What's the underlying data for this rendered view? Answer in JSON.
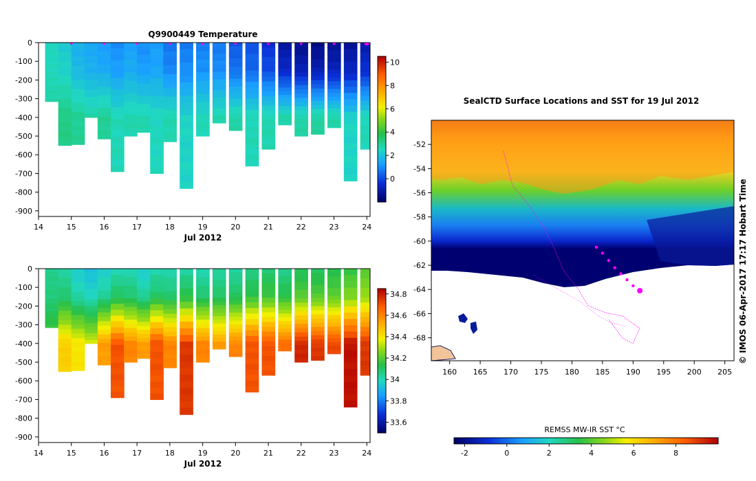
{
  "chart_data": [
    {
      "type": "heatmap",
      "title": "Q9900449  Temperature",
      "xlabel": "Jul 2012",
      "ylabel": "",
      "x_ticks": [
        "14",
        "15",
        "16",
        "17",
        "18",
        "19",
        "20",
        "21",
        "22",
        "23",
        "24"
      ],
      "y_ticks": [
        "0",
        "-100",
        "-200",
        "-300",
        "-400",
        "-500",
        "-600",
        "-700",
        "-800",
        "-900"
      ],
      "xlim": [
        14,
        24.1
      ],
      "ylim": [
        -930,
        0
      ],
      "colorbar": {
        "ticks": [
          "0",
          "2",
          "4",
          "6",
          "8",
          "10"
        ],
        "range": [
          -2,
          10.5
        ]
      },
      "profiles": [
        {
          "x": 14.4,
          "depth": 315,
          "surface": 2.5,
          "deep": 2.9
        },
        {
          "x": 14.8,
          "depth": 550,
          "surface": 2.2,
          "deep": 3.2
        },
        {
          "x": 15.2,
          "depth": 545,
          "surface": 1.6,
          "deep": 3.0
        },
        {
          "x": 15.6,
          "depth": 400,
          "surface": 1.4,
          "deep": 2.8
        },
        {
          "x": 16.0,
          "depth": 515,
          "surface": 1.2,
          "deep": 3.0
        },
        {
          "x": 16.4,
          "depth": 690,
          "surface": 1.0,
          "deep": 2.6
        },
        {
          "x": 16.8,
          "depth": 500,
          "surface": 1.3,
          "deep": 2.7
        },
        {
          "x": 17.2,
          "depth": 480,
          "surface": 1.0,
          "deep": 2.7
        },
        {
          "x": 17.6,
          "depth": 700,
          "surface": 1.2,
          "deep": 2.5
        },
        {
          "x": 18.0,
          "depth": 530,
          "surface": 0.6,
          "deep": 2.7
        },
        {
          "x": 18.5,
          "depth": 780,
          "surface": 0.7,
          "deep": 2.4
        },
        {
          "x": 19.0,
          "depth": 500,
          "surface": 0.8,
          "deep": 2.6
        },
        {
          "x": 19.5,
          "depth": 430,
          "surface": 0.7,
          "deep": 2.7
        },
        {
          "x": 20.0,
          "depth": 470,
          "surface": 0.2,
          "deep": 2.8
        },
        {
          "x": 20.5,
          "depth": 660,
          "surface": 0.1,
          "deep": 2.6
        },
        {
          "x": 21.0,
          "depth": 570,
          "surface": -0.4,
          "deep": 2.7
        },
        {
          "x": 21.5,
          "depth": 440,
          "surface": -1.2,
          "deep": 2.8
        },
        {
          "x": 22.0,
          "depth": 500,
          "surface": -1.5,
          "deep": 2.8
        },
        {
          "x": 22.5,
          "depth": 490,
          "surface": -1.6,
          "deep": 2.9
        },
        {
          "x": 23.0,
          "depth": 455,
          "surface": -1.4,
          "deep": 2.8
        },
        {
          "x": 23.5,
          "depth": 740,
          "surface": -1.3,
          "deep": 2.4
        },
        {
          "x": 24.0,
          "depth": 570,
          "surface": -1.0,
          "deep": 2.6
        }
      ]
    },
    {
      "type": "heatmap",
      "title": "",
      "xlabel": "Jul 2012",
      "ylabel": "",
      "x_ticks": [
        "14",
        "15",
        "16",
        "17",
        "18",
        "19",
        "20",
        "21",
        "22",
        "23",
        "24"
      ],
      "y_ticks": [
        "0",
        "-100",
        "-200",
        "-300",
        "-400",
        "-500",
        "-600",
        "-700",
        "-800",
        "-900"
      ],
      "xlim": [
        14,
        24.1
      ],
      "ylim": [
        -930,
        0
      ],
      "colorbar": {
        "ticks": [
          "33.6",
          "33.8",
          "34",
          "34.2",
          "34.4",
          "34.6",
          "34.8"
        ],
        "range": [
          33.5,
          34.85
        ]
      },
      "profiles": [
        {
          "x": 14.4,
          "depth": 315,
          "surface": 34.05,
          "deep": 34.2
        },
        {
          "x": 14.8,
          "depth": 550,
          "surface": 34.02,
          "deep": 34.45
        },
        {
          "x": 15.2,
          "depth": 545,
          "surface": 33.95,
          "deep": 34.4
        },
        {
          "x": 15.6,
          "depth": 400,
          "surface": 33.92,
          "deep": 34.35
        },
        {
          "x": 16.0,
          "depth": 515,
          "surface": 33.95,
          "deep": 34.55
        },
        {
          "x": 16.4,
          "depth": 690,
          "surface": 34.0,
          "deep": 34.7
        },
        {
          "x": 16.8,
          "depth": 500,
          "surface": 34.0,
          "deep": 34.6
        },
        {
          "x": 17.2,
          "depth": 480,
          "surface": 33.95,
          "deep": 34.55
        },
        {
          "x": 17.6,
          "depth": 700,
          "surface": 34.0,
          "deep": 34.7
        },
        {
          "x": 18.0,
          "depth": 530,
          "surface": 34.0,
          "deep": 34.6
        },
        {
          "x": 18.5,
          "depth": 780,
          "surface": 34.02,
          "deep": 34.75
        },
        {
          "x": 19.0,
          "depth": 500,
          "surface": 34.0,
          "deep": 34.6
        },
        {
          "x": 19.5,
          "depth": 430,
          "surface": 34.02,
          "deep": 34.55
        },
        {
          "x": 20.0,
          "depth": 470,
          "surface": 34.02,
          "deep": 34.6
        },
        {
          "x": 20.5,
          "depth": 660,
          "surface": 34.05,
          "deep": 34.7
        },
        {
          "x": 21.0,
          "depth": 570,
          "surface": 34.08,
          "deep": 34.7
        },
        {
          "x": 21.5,
          "depth": 440,
          "surface": 34.05,
          "deep": 34.65
        },
        {
          "x": 22.0,
          "depth": 500,
          "surface": 34.1,
          "deep": 34.78
        },
        {
          "x": 22.5,
          "depth": 490,
          "surface": 34.1,
          "deep": 34.75
        },
        {
          "x": 23.0,
          "depth": 455,
          "surface": 34.12,
          "deep": 34.72
        },
        {
          "x": 23.5,
          "depth": 740,
          "surface": 34.15,
          "deep": 34.82
        },
        {
          "x": 24.0,
          "depth": 570,
          "surface": 34.2,
          "deep": 34.75
        }
      ]
    },
    {
      "type": "heatmap",
      "title": "SealCTD Surface Locations and SST for 19 Jul 2012",
      "xlabel": "",
      "ylabel": "",
      "x_ticks": [
        "160",
        "165",
        "170",
        "175",
        "180",
        "185",
        "190",
        "195",
        "200",
        "205"
      ],
      "y_ticks": [
        "-52",
        "-54",
        "-56",
        "-58",
        "-60",
        "-62",
        "-64",
        "-66",
        "-68"
      ],
      "xlim": [
        157,
        206.5
      ],
      "ylim": [
        -69.9,
        -50
      ],
      "colorbar": {
        "label": "REMSS MW-IR SST °C",
        "ticks": [
          "-2",
          "0",
          "2",
          "4",
          "6",
          "8"
        ],
        "range": [
          -2.5,
          10
        ]
      },
      "surface_locations": [
        {
          "lon": 184.0,
          "lat": -60.5
        },
        {
          "lon": 185.0,
          "lat": -61.0
        },
        {
          "lon": 186.0,
          "lat": -61.6
        },
        {
          "lon": 187.0,
          "lat": -62.2
        },
        {
          "lon": 188.0,
          "lat": -62.7
        },
        {
          "lon": 189.0,
          "lat": -63.2
        },
        {
          "lon": 190.0,
          "lat": -63.7
        },
        {
          "lon": 191.1,
          "lat": -64.1
        }
      ]
    }
  ],
  "watermark": "© IMOS 06-Apr-2017 17:17 Hobart Time",
  "colors": {
    "track": "#ff00ff",
    "land": "#f2c49a",
    "no_data": "#ffffff"
  }
}
